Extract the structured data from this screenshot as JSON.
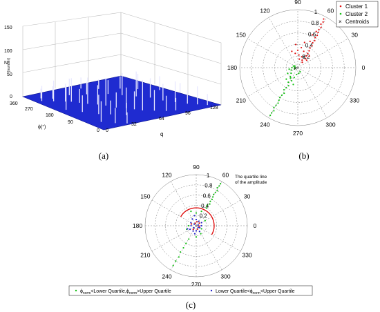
{
  "chart_data": [
    {
      "panel": "a",
      "type": "3d-bar",
      "caption": "(a)",
      "zlabel_line1": "N",
      "zlabel_line2": "[number]",
      "z_ticks": [
        "150",
        "100",
        "50",
        "0"
      ],
      "phi_label": "ϕ(°)",
      "phi_ticks": [
        "360",
        "270",
        "180",
        "90",
        "0"
      ],
      "q_label": "q",
      "q_ticks": [
        "0",
        "32",
        "64",
        "96",
        "128"
      ],
      "surface_color": "#1f2bd0",
      "spike_color": "#e8e8ff",
      "spikes": [
        {
          "q": 6,
          "phi": 300,
          "n": 22
        },
        {
          "q": 10,
          "phi": 320,
          "n": 14
        },
        {
          "q": 14,
          "phi": 280,
          "n": 30
        },
        {
          "q": 18,
          "phi": 300,
          "n": 18
        },
        {
          "q": 22,
          "phi": 260,
          "n": 26
        },
        {
          "q": 26,
          "phi": 250,
          "n": 34
        },
        {
          "q": 30,
          "phi": 230,
          "n": 20
        },
        {
          "q": 34,
          "phi": 210,
          "n": 38
        },
        {
          "q": 36,
          "phi": 300,
          "n": 24
        },
        {
          "q": 40,
          "phi": 190,
          "n": 28
        },
        {
          "q": 44,
          "phi": 170,
          "n": 40
        },
        {
          "q": 48,
          "phi": 140,
          "n": 22
        },
        {
          "q": 50,
          "phi": 280,
          "n": 18
        },
        {
          "q": 54,
          "phi": 120,
          "n": 30
        },
        {
          "q": 58,
          "phi": 100,
          "n": 26
        },
        {
          "q": 62,
          "phi": 80,
          "n": 44
        },
        {
          "q": 66,
          "phi": 250,
          "n": 20
        },
        {
          "q": 70,
          "phi": 60,
          "n": 30
        },
        {
          "q": 74,
          "phi": 220,
          "n": 32
        },
        {
          "q": 78,
          "phi": 40,
          "n": 22
        },
        {
          "q": 82,
          "phi": 190,
          "n": 36
        },
        {
          "q": 86,
          "phi": 30,
          "n": 18
        },
        {
          "q": 90,
          "phi": 160,
          "n": 28
        },
        {
          "q": 94,
          "phi": 120,
          "n": 24
        },
        {
          "q": 100,
          "phi": 90,
          "n": 30
        },
        {
          "q": 106,
          "phi": 60,
          "n": 20
        },
        {
          "q": 112,
          "phi": 40,
          "n": 26
        },
        {
          "q": 118,
          "phi": 20,
          "n": 16
        },
        {
          "q": 8,
          "phi": 200,
          "n": 34
        },
        {
          "q": 16,
          "phi": 160,
          "n": 24
        },
        {
          "q": 24,
          "phi": 120,
          "n": 28
        },
        {
          "q": 32,
          "phi": 100,
          "n": 20
        },
        {
          "q": 42,
          "phi": 70,
          "n": 18
        },
        {
          "q": 56,
          "phi": 330,
          "n": 16
        },
        {
          "q": 68,
          "phi": 300,
          "n": 14
        },
        {
          "q": 84,
          "phi": 270,
          "n": 18
        },
        {
          "q": 96,
          "phi": 240,
          "n": 22
        },
        {
          "q": 110,
          "phi": 200,
          "n": 20
        },
        {
          "q": 120,
          "phi": 150,
          "n": 14
        },
        {
          "q": 12,
          "phi": 60,
          "n": 30
        },
        {
          "q": 20,
          "phi": 30,
          "n": 22
        },
        {
          "q": 28,
          "phi": 10,
          "n": 16
        }
      ]
    },
    {
      "panel": "b",
      "type": "scatter",
      "polar": true,
      "caption": "(b)",
      "angle_ticks": [
        "90",
        "60",
        "30",
        "0",
        "330",
        "300",
        "270",
        "240",
        "210",
        "180",
        "150",
        "120"
      ],
      "r_ticks": [
        "0.2",
        "0.4",
        "0.6",
        "0.8",
        "1"
      ],
      "rlim": [
        0,
        1
      ],
      "legend": {
        "position": "top-right",
        "entries": [
          "Cluster 1",
          "Cluster 2",
          "Centroids"
        ]
      },
      "series": [
        {
          "name": "Cluster 1",
          "color": "#e01010",
          "marker": "dot",
          "points": [
            [
              62,
              0.95
            ],
            [
              61,
              0.9
            ],
            [
              62,
              0.85
            ],
            [
              60,
              0.8
            ],
            [
              61,
              0.75
            ],
            [
              60,
              0.7
            ],
            [
              59,
              0.65
            ],
            [
              60,
              0.6
            ],
            [
              58,
              0.55
            ],
            [
              59,
              0.5
            ],
            [
              57,
              0.45
            ],
            [
              58,
              0.4
            ],
            [
              56,
              0.35
            ],
            [
              55,
              0.3
            ],
            [
              54,
              0.25
            ],
            [
              50,
              0.2
            ],
            [
              70,
              0.3
            ],
            [
              80,
              0.35
            ],
            [
              90,
              0.3
            ],
            [
              100,
              0.25
            ],
            [
              110,
              0.3
            ],
            [
              75,
              0.45
            ],
            [
              65,
              0.5
            ],
            [
              85,
              0.22
            ],
            [
              45,
              0.28
            ],
            [
              40,
              0.2
            ],
            [
              95,
              0.4
            ],
            [
              70,
              0.2
            ],
            [
              60,
              0.15
            ],
            [
              50,
              0.12
            ],
            [
              80,
              0.15
            ],
            [
              66,
              0.62
            ],
            [
              63,
              0.7
            ]
          ]
        },
        {
          "name": "Cluster 2",
          "color": "#16c016",
          "marker": "dot",
          "points": [
            [
              240,
              0.95
            ],
            [
              240,
              0.9
            ],
            [
              241,
              0.85
            ],
            [
              239,
              0.8
            ],
            [
              240,
              0.75
            ],
            [
              241,
              0.7
            ],
            [
              240,
              0.65
            ],
            [
              239,
              0.6
            ],
            [
              240,
              0.55
            ],
            [
              242,
              0.5
            ],
            [
              238,
              0.45
            ],
            [
              240,
              0.4
            ],
            [
              243,
              0.35
            ],
            [
              237,
              0.3
            ],
            [
              245,
              0.25
            ],
            [
              235,
              0.22
            ],
            [
              230,
              0.2
            ],
            [
              250,
              0.18
            ],
            [
              200,
              0.12
            ],
            [
              180,
              0.1
            ],
            [
              160,
              0.08
            ],
            [
              220,
              0.15
            ],
            [
              260,
              0.12
            ],
            [
              280,
              0.1
            ],
            [
              300,
              0.08
            ],
            [
              200,
              0.06
            ],
            [
              170,
              0.05
            ],
            [
              150,
              0.06
            ],
            [
              210,
              0.2
            ],
            [
              190,
              0.15
            ],
            [
              225,
              0.28
            ],
            [
              255,
              0.3
            ]
          ]
        },
        {
          "name": "Centroids",
          "color": "#000000",
          "marker": "x",
          "points": [
            [
              60,
              0.22
            ],
            [
              200,
              0.04
            ]
          ]
        }
      ]
    },
    {
      "panel": "c",
      "type": "scatter",
      "polar": true,
      "caption": "(c)",
      "angle_ticks": [
        "90",
        "60",
        "30",
        "0",
        "330",
        "300",
        "270",
        "240",
        "210",
        "180",
        "150",
        "120"
      ],
      "r_ticks": [
        "0.2",
        "0.4",
        "0.6",
        "0.8",
        "1"
      ],
      "rlim": [
        0,
        1
      ],
      "annotation_line1": "The quartile line",
      "annotation_line2": "of the amplitude",
      "quartile_arc": {
        "r": 0.35,
        "from_deg": -30,
        "to_deg": 150,
        "color": "#e01010"
      },
      "legend": {
        "position": "bottom",
        "entry1": {
          "pre": "ϕ",
          "sub1": "norm",
          "mid1": "<Lower Quartile,ϕ",
          "sub2": "norm",
          "post": ">Upper Quartile"
        },
        "entry2": {
          "pre": "Lower Quartile<ϕ",
          "sub1": "norm",
          "post": "<Upper Quartile"
        }
      },
      "series": [
        {
          "name": "",
          "color": "#16c016",
          "marker": "dot",
          "points": [
            [
              60,
              0.95
            ],
            [
              60,
              0.9
            ],
            [
              61,
              0.85
            ],
            [
              59,
              0.8
            ],
            [
              60,
              0.75
            ],
            [
              61,
              0.7
            ],
            [
              60,
              0.65
            ],
            [
              59,
              0.6
            ],
            [
              60,
              0.55
            ],
            [
              58,
              0.5
            ],
            [
              62,
              0.45
            ],
            [
              60,
              0.4
            ],
            [
              240,
              0.9
            ],
            [
              240,
              0.8
            ],
            [
              241,
              0.7
            ],
            [
              239,
              0.6
            ],
            [
              240,
              0.5
            ],
            [
              240,
              0.4
            ],
            [
              241,
              0.3
            ],
            [
              70,
              0.3
            ],
            [
              90,
              0.25
            ],
            [
              110,
              0.3
            ],
            [
              200,
              0.2
            ],
            [
              180,
              0.15
            ],
            [
              30,
              0.2
            ],
            [
              300,
              0.18
            ],
            [
              270,
              0.22
            ],
            [
              330,
              0.12
            ]
          ]
        },
        {
          "name": "",
          "color": "#2020c8",
          "marker": "dot",
          "points": [
            [
              90,
              0.12
            ],
            [
              120,
              0.15
            ],
            [
              150,
              0.12
            ],
            [
              180,
              0.1
            ],
            [
              210,
              0.14
            ],
            [
              240,
              0.12
            ],
            [
              270,
              0.1
            ],
            [
              300,
              0.13
            ],
            [
              330,
              0.08
            ],
            [
              0,
              0.1
            ],
            [
              30,
              0.12
            ],
            [
              60,
              0.1
            ],
            [
              100,
              0.2
            ],
            [
              200,
              0.18
            ],
            [
              260,
              0.16
            ],
            [
              140,
              0.05
            ],
            [
              220,
              0.06
            ],
            [
              320,
              0.05
            ],
            [
              20,
              0.04
            ]
          ]
        },
        {
          "name": "",
          "color": "#e01010",
          "marker": "dot",
          "points": [
            [
              80,
              0.08
            ],
            [
              160,
              0.1
            ],
            [
              230,
              0.09
            ],
            [
              290,
              0.07
            ],
            [
              350,
              0.06
            ],
            [
              40,
              0.08
            ],
            [
              110,
              0.05
            ]
          ]
        }
      ]
    }
  ]
}
